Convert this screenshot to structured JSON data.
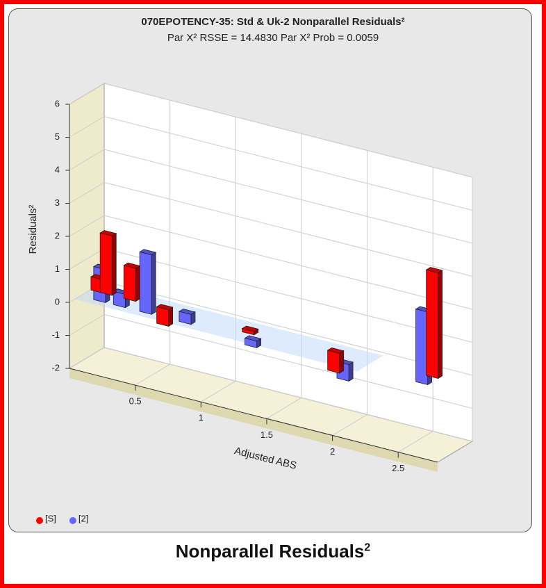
{
  "chart_data": {
    "type": "bar3d",
    "title": "070EPOTENCY-35: Std & Uk-2  Nonparallel Residuals²",
    "subtitle": "Par X² RSSE = 14.4830 Par X² Prob = 0.0059",
    "x_label": "Adjusted ABS",
    "y_label": "Residuals²",
    "xlim": [
      0,
      2.8
    ],
    "xticks": [
      0.5,
      1,
      1.5,
      2,
      2.5
    ],
    "ylim": [
      -2,
      6
    ],
    "yticks": [
      -2,
      -1,
      0,
      1,
      2,
      3,
      4,
      5,
      6
    ],
    "grid": true,
    "legend": "bottom-left",
    "series": [
      {
        "name": "[S]",
        "color": "#ff0000",
        "x": [
          0.05,
          0.12,
          0.3,
          0.55,
          1.2,
          1.85,
          2.6
        ],
        "values": [
          0.4,
          1.8,
          1.0,
          -0.5,
          -0.1,
          -0.6,
          3.2
        ]
      },
      {
        "name": "[2]",
        "color": "#6666ff",
        "x": [
          0.15,
          0.3,
          0.5,
          0.8,
          1.3,
          2.0,
          2.6
        ],
        "values": [
          1.0,
          0.4,
          1.8,
          0.3,
          -0.2,
          -0.5,
          2.2
        ]
      }
    ]
  },
  "caption": {
    "text": "Nonparallel Residuals",
    "sup": "2"
  }
}
